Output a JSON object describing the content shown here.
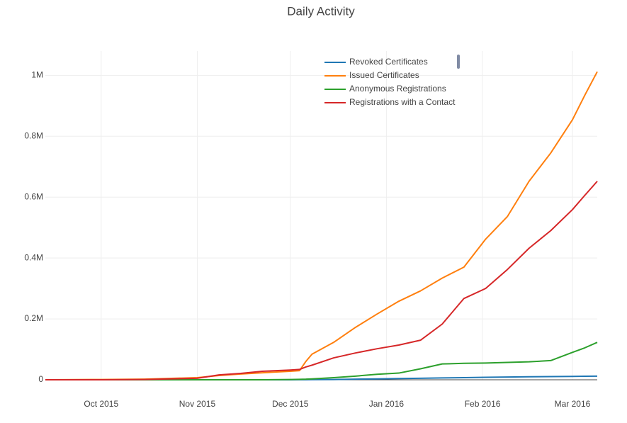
{
  "chart_data": {
    "type": "line",
    "title": "Daily Activity",
    "x": [
      "2015-09-13",
      "2015-10-01",
      "2015-10-15",
      "2015-11-01",
      "2015-11-08",
      "2015-11-15",
      "2015-11-22",
      "2015-12-01",
      "2015-12-04",
      "2015-12-06",
      "2015-12-08",
      "2015-12-15",
      "2015-12-22",
      "2015-12-29",
      "2016-01-05",
      "2016-01-12",
      "2016-01-19",
      "2016-01-26",
      "2016-02-02",
      "2016-02-09",
      "2016-02-16",
      "2016-02-23",
      "2016-03-01",
      "2016-03-05",
      "2016-03-09"
    ],
    "series": [
      {
        "name": "Revoked Certificates",
        "color": "#1f77b4",
        "values": [
          0,
          0,
          0,
          0,
          0,
          0,
          0,
          0,
          200,
          300,
          500,
          1000,
          2000,
          3000,
          4000,
          5000,
          6000,
          7000,
          8000,
          9000,
          10000,
          10500,
          11000,
          11500,
          12000
        ]
      },
      {
        "name": "Issued Certificates",
        "color": "#ff7f0e",
        "values": [
          0,
          1000,
          2000,
          7000,
          14000,
          19000,
          23000,
          28000,
          30000,
          60000,
          84000,
          123000,
          172000,
          216000,
          258000,
          292000,
          334000,
          370000,
          462000,
          536000,
          652000,
          745000,
          854000,
          935000,
          1012000
        ]
      },
      {
        "name": "Anonymous Registrations",
        "color": "#2ca02c",
        "values": [
          0,
          0,
          0,
          0,
          0,
          0,
          0,
          1000,
          1500,
          2000,
          3000,
          7000,
          12000,
          18000,
          22000,
          36000,
          52000,
          54000,
          55000,
          57000,
          59000,
          63000,
          90000,
          105000,
          123000
        ]
      },
      {
        "name": "Registrations with a Contact",
        "color": "#d62728",
        "values": [
          0,
          0,
          1000,
          5000,
          16000,
          21000,
          28000,
          32000,
          34000,
          42000,
          48000,
          72000,
          88000,
          102000,
          114000,
          130000,
          183000,
          267000,
          300000,
          362000,
          432000,
          490000,
          559000,
          606000,
          652000
        ]
      }
    ],
    "xlim": [
      "2015-09-13",
      "2016-03-09"
    ],
    "xticks": [
      {
        "value": "2015-10-01",
        "label": "Oct 2015"
      },
      {
        "value": "2015-11-01",
        "label": "Nov 2015"
      },
      {
        "value": "2015-12-01",
        "label": "Dec 2015"
      },
      {
        "value": "2016-01-01",
        "label": "Jan 2016"
      },
      {
        "value": "2016-02-01",
        "label": "Feb 2016"
      },
      {
        "value": "2016-03-01",
        "label": "Mar 2016"
      }
    ],
    "ylim": [
      0,
      1080000
    ],
    "yticks": [
      0,
      {
        "value": 200000,
        "label": "0.2M"
      },
      {
        "value": 400000,
        "label": "0.4M"
      },
      {
        "value": 600000,
        "label": "0.6M"
      },
      {
        "value": 800000,
        "label": "0.8M"
      },
      {
        "value": 1000000,
        "label": "1M"
      }
    ],
    "grid": true,
    "legend": "top"
  }
}
